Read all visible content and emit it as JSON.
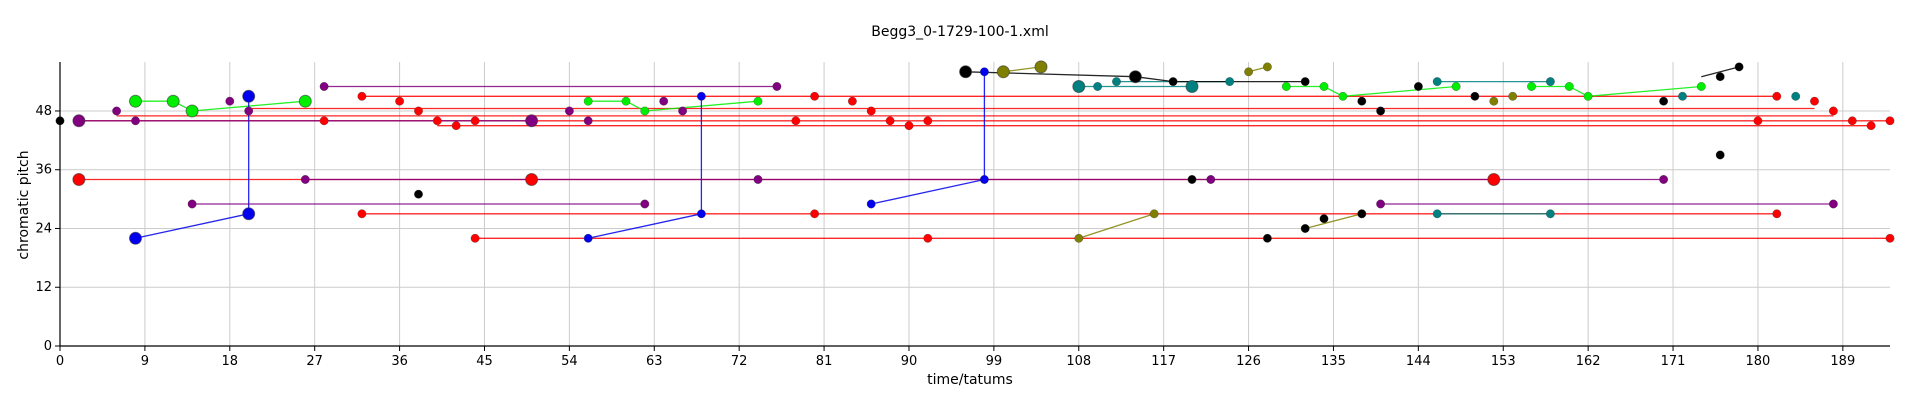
{
  "chart_data": {
    "type": "scatter",
    "title": "Begg3_0-1729-100-1.xml",
    "xlabel": "time/tatums",
    "ylabel": "chromatic pitch",
    "xlim": [
      0,
      194
    ],
    "ylim": [
      0,
      58
    ],
    "x_ticks": [
      0,
      9,
      18,
      27,
      36,
      45,
      54,
      63,
      72,
      81,
      90,
      99,
      108,
      117,
      126,
      135,
      144,
      153,
      162,
      171,
      180,
      189
    ],
    "y_ticks": [
      0,
      12,
      24,
      36,
      48
    ],
    "grid": true,
    "series": [
      {
        "color": "#ff0000",
        "lines": [
          [
            [
              2,
              34
            ],
            [
              152,
              34
            ]
          ],
          [
            [
              44,
              22
            ],
            [
              194,
              22
            ]
          ],
          [
            [
              32,
              27
            ],
            [
              182,
              27
            ]
          ],
          [
            [
              2,
              46
            ],
            [
              194,
              46
            ]
          ],
          [
            [
              6,
              47
            ],
            [
              188,
              47
            ]
          ],
          [
            [
              20,
              48.5
            ],
            [
              186,
              48.5
            ]
          ],
          [
            [
              32,
              51
            ],
            [
              182,
              51
            ]
          ],
          [
            [
              40,
              45
            ],
            [
              192,
              45
            ]
          ]
        ],
        "points": [
          [
            2,
            34,
            "lg"
          ],
          [
            50,
            34,
            "lg"
          ],
          [
            152,
            34,
            "lg"
          ],
          [
            32,
            51
          ],
          [
            36,
            50
          ],
          [
            38,
            48
          ],
          [
            40,
            46
          ],
          [
            42,
            45
          ],
          [
            44,
            46
          ],
          [
            28,
            46
          ],
          [
            32,
            27
          ],
          [
            44,
            22
          ],
          [
            80,
            51
          ],
          [
            84,
            50
          ],
          [
            86,
            48
          ],
          [
            88,
            46
          ],
          [
            90,
            45
          ],
          [
            92,
            46
          ],
          [
            92,
            22
          ],
          [
            78,
            46
          ],
          [
            80,
            27
          ],
          [
            182,
            51
          ],
          [
            186,
            50
          ],
          [
            188,
            48
          ],
          [
            190,
            46
          ],
          [
            192,
            45
          ],
          [
            194,
            46
          ],
          [
            180,
            46
          ],
          [
            182,
            27
          ],
          [
            194,
            22
          ]
        ]
      },
      {
        "color": "#00ee00",
        "lines": [
          [
            [
              8,
              50
            ],
            [
              12,
              50
            ],
            [
              14,
              48
            ],
            [
              26,
              50
            ]
          ],
          [
            [
              56,
              50
            ],
            [
              60,
              50
            ],
            [
              62,
              48
            ],
            [
              74,
              50
            ]
          ],
          [
            [
              130,
              53
            ],
            [
              134,
              53
            ],
            [
              136,
              51
            ],
            [
              148,
              53
            ]
          ],
          [
            [
              156,
              53
            ],
            [
              160,
              53
            ],
            [
              162,
              51
            ],
            [
              174,
              53
            ]
          ]
        ],
        "points": [
          [
            8,
            50,
            "lg"
          ],
          [
            12,
            50,
            "lg"
          ],
          [
            14,
            48,
            "lg"
          ],
          [
            26,
            50,
            "lg"
          ],
          [
            56,
            50
          ],
          [
            60,
            50
          ],
          [
            62,
            48
          ],
          [
            74,
            50
          ],
          [
            130,
            53
          ],
          [
            134,
            53
          ],
          [
            136,
            51
          ],
          [
            148,
            53
          ],
          [
            156,
            53
          ],
          [
            160,
            53
          ],
          [
            162,
            51
          ],
          [
            174,
            53
          ]
        ]
      },
      {
        "color": "#0000ee",
        "lines": [
          [
            [
              8,
              22
            ],
            [
              20,
              27
            ],
            [
              20,
              51
            ]
          ],
          [
            [
              56,
              22
            ],
            [
              68,
              27
            ],
            [
              68,
              51
            ]
          ],
          [
            [
              86,
              29
            ],
            [
              98,
              34
            ],
            [
              98,
              56
            ]
          ]
        ],
        "points": [
          [
            8,
            22,
            "lg"
          ],
          [
            20,
            27,
            "lg"
          ],
          [
            20,
            51,
            "lg"
          ],
          [
            56,
            22
          ],
          [
            68,
            27
          ],
          [
            68,
            51
          ],
          [
            86,
            29
          ],
          [
            98,
            34
          ],
          [
            98,
            56
          ]
        ]
      },
      {
        "color": "#800080",
        "lines": [
          [
            [
              14,
              29
            ],
            [
              62,
              29
            ]
          ],
          [
            [
              26,
              34
            ],
            [
              170,
              34
            ]
          ],
          [
            [
              28,
              53
            ],
            [
              76,
              53
            ]
          ],
          [
            [
              2,
              46
            ],
            [
              50,
              46
            ]
          ],
          [
            [
              140,
              29
            ],
            [
              188,
              29
            ]
          ]
        ],
        "points": [
          [
            2,
            46,
            "lg"
          ],
          [
            6,
            48
          ],
          [
            8,
            46
          ],
          [
            14,
            29
          ],
          [
            18,
            50
          ],
          [
            20,
            48
          ],
          [
            26,
            34
          ],
          [
            28,
            53
          ],
          [
            50,
            46,
            "lg"
          ],
          [
            54,
            48
          ],
          [
            56,
            46
          ],
          [
            62,
            29
          ],
          [
            64,
            50
          ],
          [
            66,
            48
          ],
          [
            74,
            34
          ],
          [
            76,
            53
          ],
          [
            122,
            34
          ],
          [
            140,
            29
          ],
          [
            170,
            34
          ],
          [
            188,
            29
          ]
        ]
      },
      {
        "color": "#008080",
        "lines": [
          [
            [
              108,
              53
            ],
            [
              120,
              53
            ]
          ],
          [
            [
              112,
              54
            ],
            [
              124,
              54
            ]
          ],
          [
            [
              146,
              54
            ],
            [
              158,
              54
            ]
          ],
          [
            [
              146,
              27
            ],
            [
              158,
              27
            ]
          ]
        ],
        "points": [
          [
            108,
            53,
            "lg"
          ],
          [
            110,
            53
          ],
          [
            112,
            54
          ],
          [
            120,
            53,
            "lg"
          ],
          [
            124,
            54
          ],
          [
            146,
            54
          ],
          [
            158,
            54
          ],
          [
            172,
            51
          ],
          [
            184,
            51
          ],
          [
            146,
            27
          ],
          [
            158,
            27
          ]
        ]
      },
      {
        "color": "#808000",
        "lines": [
          [
            [
              100,
              56
            ],
            [
              104,
              57
            ]
          ],
          [
            [
              126,
              56
            ],
            [
              128,
              57
            ]
          ],
          [
            [
              108,
              22
            ],
            [
              116,
              27
            ]
          ],
          [
            [
              132,
              24
            ],
            [
              138,
              27
            ]
          ]
        ],
        "points": [
          [
            100,
            56,
            "lg"
          ],
          [
            104,
            57,
            "lg"
          ],
          [
            126,
            56
          ],
          [
            128,
            57
          ],
          [
            108,
            22
          ],
          [
            116,
            27
          ],
          [
            138,
            27
          ],
          [
            154,
            51
          ],
          [
            152,
            50
          ]
        ]
      },
      {
        "color": "#000000",
        "lines": [
          [
            [
              96,
              56
            ],
            [
              114,
              55
            ],
            [
              118,
              54
            ],
            [
              132,
              54
            ]
          ],
          [
            [
              174,
              55
            ],
            [
              178,
              57
            ]
          ]
        ],
        "points": [
          [
            0,
            46
          ],
          [
            38,
            31
          ],
          [
            96,
            56,
            "lg"
          ],
          [
            114,
            55,
            "lg"
          ],
          [
            118,
            54
          ],
          [
            120,
            34
          ],
          [
            128,
            22
          ],
          [
            132,
            54
          ],
          [
            132,
            24
          ],
          [
            134,
            26
          ],
          [
            138,
            27
          ],
          [
            138,
            50
          ],
          [
            140,
            48
          ],
          [
            144,
            53
          ],
          [
            150,
            51
          ],
          [
            170,
            50
          ],
          [
            176,
            39
          ],
          [
            176,
            55
          ],
          [
            178,
            57
          ]
        ]
      }
    ]
  }
}
